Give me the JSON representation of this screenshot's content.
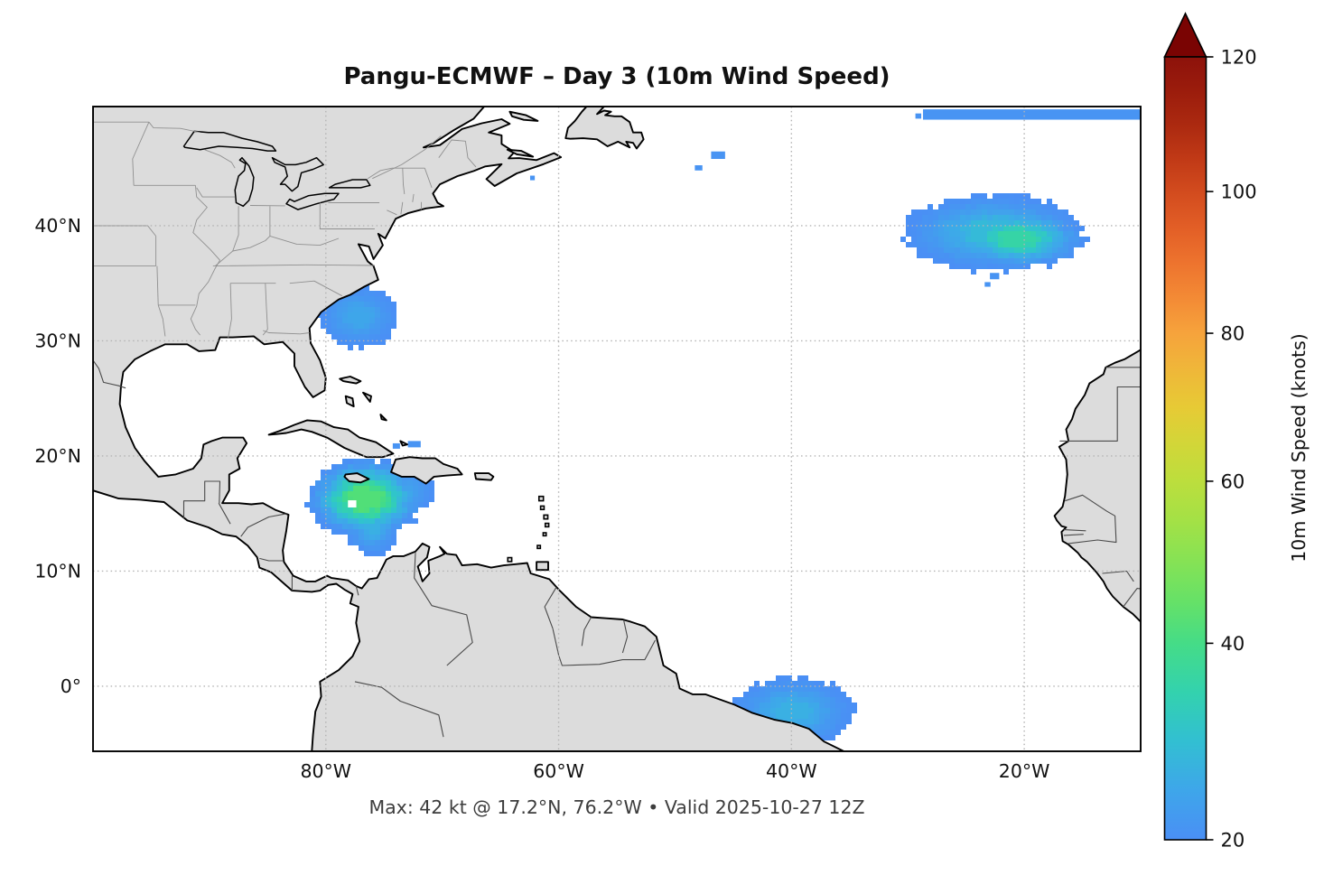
{
  "title": "Pangu-ECMWF – Day 3 (10m Wind Speed)",
  "caption": "Max: 42 kt @ 17.2°N, 76.2°W • Valid 2025-10-27 12Z",
  "axes": {
    "extent": {
      "lon_min": -100,
      "lon_max": -10,
      "lat_min": -5.65,
      "lat_max": 50.35
    },
    "x_ticks": [
      {
        "lon": -80,
        "label": "80°W"
      },
      {
        "lon": -60,
        "label": "60°W"
      },
      {
        "lon": -40,
        "label": "40°W"
      },
      {
        "lon": -20,
        "label": "20°W"
      }
    ],
    "y_ticks": [
      {
        "lat": 40,
        "label": "40°N"
      },
      {
        "lat": 30,
        "label": "30°N"
      },
      {
        "lat": 20,
        "label": "20°N"
      },
      {
        "lat": 10,
        "label": "10°N"
      },
      {
        "lat": 0,
        "label": "0°"
      }
    ],
    "grid": true
  },
  "colorbar": {
    "label": "10m Wind Speed (knots)",
    "min": 20,
    "max": 120,
    "ticks": [
      20,
      40,
      60,
      80,
      100,
      120
    ],
    "tick_fractions_from_top": [
      1.0,
      0.749,
      0.542,
      0.353,
      0.172,
      0.0
    ],
    "over_color": "#7a0403",
    "stops": [
      {
        "v": 20,
        "c": "#4a8ff5"
      },
      {
        "v": 26,
        "c": "#3cabe8"
      },
      {
        "v": 31,
        "c": "#30c4cd"
      },
      {
        "v": 35,
        "c": "#33d2ae"
      },
      {
        "v": 39,
        "c": "#3fda8e"
      },
      {
        "v": 43,
        "c": "#57e070"
      },
      {
        "v": 48,
        "c": "#79e25b"
      },
      {
        "v": 55,
        "c": "#a3e146"
      },
      {
        "v": 62,
        "c": "#c6dd3a"
      },
      {
        "v": 70,
        "c": "#e7ca35"
      },
      {
        "v": 80,
        "c": "#f6a33c"
      },
      {
        "v": 88,
        "c": "#f17b31"
      },
      {
        "v": 96,
        "c": "#e05a24"
      },
      {
        "v": 104,
        "c": "#c43c17"
      },
      {
        "v": 112,
        "c": "#a3220d"
      },
      {
        "v": 120,
        "c": "#8d120b"
      }
    ]
  },
  "chart_data": {
    "type": "heatmap",
    "model": "Pangu-ECMWF",
    "forecast_day": 3,
    "field": "10m wind speed",
    "units": "knots",
    "valid": "2025-10-27 12Z",
    "max": {
      "value_kt": 42,
      "lat": 17.2,
      "lon": -76.2
    },
    "scale_min_kt": 20,
    "scale_max_kt": 120,
    "masked_below_kt": 20,
    "features": [
      {
        "name": "caribbean-jamaica-system",
        "peak_kt": 42,
        "ellipses": [
          {
            "lon": -76.6,
            "lat": 16.3,
            "rx": 5.0,
            "ry": 3.5,
            "peak": 42
          },
          {
            "lon": -76.0,
            "lat": 13.9,
            "rx": 2.3,
            "ry": 2.5,
            "peak": 27
          },
          {
            "lon": -73.2,
            "lat": 17.0,
            "rx": 2.6,
            "ry": 2.0,
            "peak": 24
          }
        ],
        "hole": {
          "lon": -78.1,
          "lat": 16.15,
          "w": 0.72,
          "h": 0.62
        }
      },
      {
        "name": "us-southeast-coast",
        "peak_kt": 25,
        "ellipses": [
          {
            "lon": -77.2,
            "lat": 32.1,
            "rx": 3.4,
            "ry": 2.7,
            "peak": 25
          }
        ]
      },
      {
        "name": "central-atlantic",
        "peak_kt": 36,
        "ellipses": [
          {
            "lon": -22.6,
            "lat": 39.4,
            "rx": 7.6,
            "ry": 3.3,
            "peak": 29
          },
          {
            "lon": -20.6,
            "lat": 38.9,
            "rx": 5.8,
            "ry": 2.6,
            "peak": 36
          }
        ]
      },
      {
        "name": "brazil-ne-coast",
        "peak_kt": 27,
        "ellipses": [
          {
            "lon": -39.9,
            "lat": -2.2,
            "rx": 5.3,
            "ry": 3.0,
            "peak": 27
          }
        ]
      }
    ],
    "patches": [
      {
        "name": "far-north-strip",
        "lon": -28.7,
        "lat": 50.11,
        "w": 18.8,
        "h": 0.9,
        "kt": 21
      },
      {
        "name": "speck",
        "lon": -29.35,
        "lat": 49.75,
        "w": 0.5,
        "h": 0.45,
        "kt": 21
      },
      {
        "name": "speck",
        "lon": -62.45,
        "lat": 44.35,
        "w": 0.4,
        "h": 0.4,
        "kt": 21
      },
      {
        "name": "speck",
        "lon": -46.9,
        "lat": 46.45,
        "w": 1.2,
        "h": 0.65,
        "kt": 21
      },
      {
        "name": "speck",
        "lon": -48.3,
        "lat": 45.25,
        "w": 0.65,
        "h": 0.45,
        "kt": 21
      },
      {
        "name": "speck",
        "lon": -74.25,
        "lat": 21.1,
        "w": 0.62,
        "h": 0.47,
        "kt": 21
      },
      {
        "name": "speck",
        "lon": -72.95,
        "lat": 21.3,
        "w": 1.1,
        "h": 0.55,
        "kt": 21
      },
      {
        "name": "speck",
        "lon": -22.95,
        "lat": 35.9,
        "w": 0.8,
        "h": 0.55,
        "kt": 21
      },
      {
        "name": "speck",
        "lon": -23.4,
        "lat": 35.1,
        "w": 0.5,
        "h": 0.4,
        "kt": 21
      }
    ]
  },
  "style": {
    "land_fill": "#dcdcdc",
    "coast_stroke": "#000000",
    "country_border": "#4a4a4a",
    "state_border": "#909090",
    "grid_color": "#b3b3b3",
    "frame_color": "#000000"
  }
}
